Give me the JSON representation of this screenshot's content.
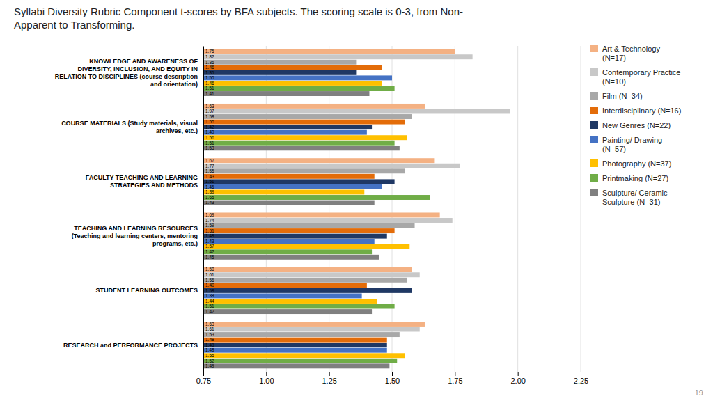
{
  "chart_data": {
    "type": "bar",
    "orientation": "horizontal",
    "title": "Syllabi Diversity Rubric Component t-scores by BFA subjects. The scoring scale is 0-3, from Non-\nApparent to Transforming.",
    "categories": [
      "KNOWLEDGE AND AWARENESS OF\nDIVERSITY, INCLUSION, AND EQUITY IN\nRELATION TO DISCIPLINES (course description\nand orientation)",
      "COURSE MATERIALS (Study materials, visual\narchives, etc.)",
      "FACULTY TEACHING AND LEARNING\nSTRATEGIES AND METHODS",
      "TEACHING AND LEARNING RESOURCES\n(Teaching and learning centers, mentoring\nprograms, etc.)",
      "STUDENT LEARNING OUTCOMES",
      "RESEARCH and  PERFORMANCE PROJECTS"
    ],
    "series": [
      {
        "name": "Art & Technology\n(N=17)",
        "color": "#f4b183",
        "values": [
          1.75,
          1.63,
          1.67,
          1.69,
          1.58,
          1.63
        ],
        "value_labels": [
          "1.75",
          "1.63",
          "1.67",
          "1.69",
          "1.58",
          "1.63"
        ]
      },
      {
        "name": "Contemporary Practice\n(N=10)",
        "color": "#c8c8c8",
        "values": [
          1.82,
          1.97,
          1.77,
          1.74,
          1.61,
          1.61
        ],
        "value_labels": [
          "1.82",
          "1.97",
          "1.77",
          "1.74",
          "1.61",
          "1.61"
        ]
      },
      {
        "name": "Film (N=34)",
        "color": "#a8a8a8",
        "values": [
          1.36,
          1.58,
          1.55,
          1.59,
          1.56,
          1.53
        ],
        "value_labels": [
          "1.36",
          "1.58",
          "1.55",
          "1.59",
          "1.56",
          "1.53"
        ]
      },
      {
        "name": "Interdisciplinary (N=16)",
        "color": "#e36c09",
        "values": [
          1.46,
          1.55,
          1.43,
          1.51,
          1.4,
          1.48
        ],
        "value_labels": [
          "1.46",
          "1.55",
          "1.43",
          "1.51",
          "1.40",
          "1.48"
        ]
      },
      {
        "name": "New Genres (N=22)",
        "color": "#1f3864",
        "values": [
          1.36,
          1.42,
          1.51,
          1.48,
          1.58,
          1.48
        ],
        "value_labels": [
          "1.36",
          "1.42",
          "1.51",
          "1.48",
          "1.58",
          "1.48"
        ]
      },
      {
        "name": "Painting/ Drawing\n(N=57)",
        "color": "#4472c4",
        "values": [
          1.5,
          1.4,
          1.46,
          1.43,
          1.38,
          1.48
        ],
        "value_labels": [
          "1.50",
          "1.40",
          "1.46",
          "1.43",
          "1.38",
          "1.48"
        ]
      },
      {
        "name": "Photography (N=37)",
        "color": "#ffc000",
        "values": [
          1.46,
          1.56,
          1.39,
          1.57,
          1.44,
          1.55
        ],
        "value_labels": [
          "1.46",
          "1.56",
          "1.39",
          "1.57",
          "1.44",
          "1.55"
        ]
      },
      {
        "name": "Printmaking (N=27)",
        "color": "#70ad47",
        "values": [
          1.51,
          1.51,
          1.65,
          1.42,
          1.51,
          1.52
        ],
        "value_labels": [
          "1.51",
          "1.51",
          "1.65",
          "1.42",
          "1.51",
          "1.52"
        ]
      },
      {
        "name": "Sculpture/ Ceramic\nSculpture (N=31)",
        "color": "#808080",
        "values": [
          1.41,
          1.53,
          1.43,
          1.45,
          1.42,
          1.49
        ],
        "value_labels": [
          "1.41",
          "1.53",
          "1.43",
          "1.45",
          "1.42",
          "1.49"
        ]
      }
    ],
    "xlim": [
      0.75,
      2.25
    ],
    "xticks": [
      0.75,
      {
        "value": 1,
        "label": "1.00"
      },
      1.25,
      {
        "value": 1.5,
        "label": "1.50"
      },
      1.75,
      {
        "value": 2,
        "label": "2.00"
      },
      2.25
    ],
    "grid": true,
    "legend": "right",
    "data_labels": true,
    "annotations": [
      "19"
    ]
  }
}
